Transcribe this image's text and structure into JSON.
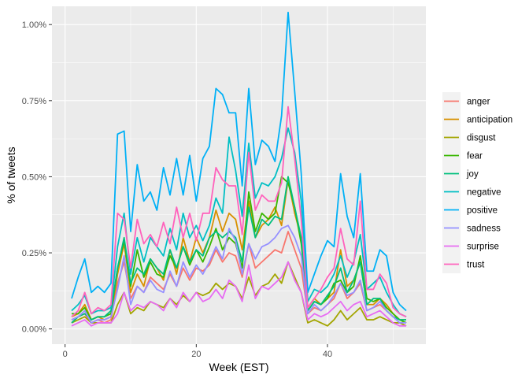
{
  "chart_data": {
    "type": "line",
    "xlabel": "Week (EST)",
    "ylabel": "% of tweets",
    "xlim": [
      -2,
      55
    ],
    "ylim": [
      -0.05,
      1.06
    ],
    "x_ticks": [
      0,
      20,
      40
    ],
    "x_tick_labels": [
      "0",
      "20",
      "40"
    ],
    "y_ticks": [
      0,
      0.25,
      0.5,
      0.75,
      1.0
    ],
    "y_tick_labels": [
      "0.00%",
      "0.25%",
      "0.50%",
      "0.75%",
      "1.00%"
    ],
    "grid": true,
    "legend_position": "right",
    "panel_background": "#ebebeb",
    "x": [
      1,
      2,
      3,
      4,
      5,
      6,
      7,
      8,
      9,
      10,
      11,
      12,
      13,
      14,
      15,
      16,
      17,
      18,
      19,
      20,
      21,
      22,
      23,
      24,
      25,
      26,
      27,
      28,
      29,
      30,
      31,
      32,
      33,
      34,
      35,
      36,
      37,
      38,
      39,
      40,
      41,
      42,
      43,
      44,
      45,
      46,
      47,
      48,
      49,
      50,
      51,
      52
    ],
    "series": [
      {
        "name": "anger",
        "color": "#F8766D",
        "values": [
          0.03,
          0.04,
          0.05,
          0.02,
          0.03,
          0.02,
          0.03,
          0.15,
          0.22,
          0.1,
          0.14,
          0.12,
          0.17,
          0.15,
          0.13,
          0.18,
          0.14,
          0.2,
          0.16,
          0.2,
          0.19,
          0.21,
          0.26,
          0.22,
          0.25,
          0.24,
          0.17,
          0.28,
          0.2,
          0.22,
          0.24,
          0.26,
          0.25,
          0.32,
          0.26,
          0.2,
          0.05,
          0.07,
          0.06,
          0.08,
          0.1,
          0.15,
          0.1,
          0.12,
          0.15,
          0.06,
          0.07,
          0.08,
          0.06,
          0.04,
          0.03,
          0.02
        ]
      },
      {
        "name": "anticipation",
        "color": "#D89000",
        "values": [
          0.04,
          0.05,
          0.08,
          0.03,
          0.04,
          0.03,
          0.04,
          0.18,
          0.28,
          0.12,
          0.18,
          0.14,
          0.23,
          0.2,
          0.16,
          0.26,
          0.18,
          0.3,
          0.22,
          0.3,
          0.25,
          0.3,
          0.39,
          0.32,
          0.38,
          0.36,
          0.26,
          0.42,
          0.3,
          0.34,
          0.36,
          0.4,
          0.34,
          0.49,
          0.38,
          0.3,
          0.07,
          0.1,
          0.08,
          0.1,
          0.12,
          0.26,
          0.14,
          0.16,
          0.22,
          0.08,
          0.08,
          0.1,
          0.08,
          0.05,
          0.03,
          0.03
        ]
      },
      {
        "name": "disgust",
        "color": "#A3A500",
        "values": [
          0.02,
          0.03,
          0.04,
          0.02,
          0.02,
          0.02,
          0.02,
          0.08,
          0.12,
          0.05,
          0.07,
          0.06,
          0.09,
          0.08,
          0.07,
          0.1,
          0.08,
          0.11,
          0.09,
          0.12,
          0.11,
          0.12,
          0.15,
          0.13,
          0.15,
          0.14,
          0.1,
          0.17,
          0.11,
          0.14,
          0.15,
          0.18,
          0.15,
          0.22,
          0.17,
          0.12,
          0.02,
          0.03,
          0.02,
          0.01,
          0.03,
          0.06,
          0.03,
          0.05,
          0.07,
          0.03,
          0.03,
          0.04,
          0.03,
          0.02,
          0.02,
          0.01
        ]
      },
      {
        "name": "fear",
        "color": "#39B600",
        "values": [
          0.05,
          0.05,
          0.07,
          0.03,
          0.04,
          0.04,
          0.05,
          0.2,
          0.29,
          0.14,
          0.26,
          0.17,
          0.22,
          0.18,
          0.17,
          0.24,
          0.2,
          0.27,
          0.21,
          0.26,
          0.22,
          0.27,
          0.33,
          0.26,
          0.3,
          0.28,
          0.2,
          0.45,
          0.32,
          0.38,
          0.36,
          0.38,
          0.5,
          0.48,
          0.4,
          0.28,
          0.06,
          0.09,
          0.08,
          0.1,
          0.15,
          0.16,
          0.12,
          0.14,
          0.24,
          0.1,
          0.09,
          0.1,
          0.07,
          0.05,
          0.03,
          0.02
        ]
      },
      {
        "name": "joy",
        "color": "#00BF7D",
        "values": [
          0.02,
          0.04,
          0.05,
          0.03,
          0.04,
          0.04,
          0.06,
          0.2,
          0.3,
          0.15,
          0.2,
          0.18,
          0.23,
          0.2,
          0.18,
          0.26,
          0.2,
          0.27,
          0.22,
          0.26,
          0.24,
          0.3,
          0.32,
          0.3,
          0.32,
          0.3,
          0.22,
          0.4,
          0.3,
          0.36,
          0.34,
          0.37,
          0.36,
          0.5,
          0.4,
          0.3,
          0.06,
          0.09,
          0.08,
          0.11,
          0.14,
          0.2,
          0.12,
          0.16,
          0.22,
          0.08,
          0.1,
          0.1,
          0.06,
          0.04,
          0.03,
          0.03
        ]
      },
      {
        "name": "negative",
        "color": "#00BFC4",
        "values": [
          0.06,
          0.08,
          0.11,
          0.05,
          0.06,
          0.06,
          0.07,
          0.27,
          0.38,
          0.18,
          0.3,
          0.22,
          0.3,
          0.27,
          0.24,
          0.33,
          0.26,
          0.38,
          0.3,
          0.34,
          0.29,
          0.34,
          0.43,
          0.38,
          0.63,
          0.52,
          0.37,
          0.61,
          0.43,
          0.48,
          0.47,
          0.5,
          0.56,
          0.66,
          0.58,
          0.42,
          0.09,
          0.13,
          0.12,
          0.14,
          0.18,
          0.24,
          0.17,
          0.22,
          0.31,
          0.13,
          0.15,
          0.17,
          0.12,
          0.08,
          0.05,
          0.04
        ]
      },
      {
        "name": "positive",
        "color": "#00B0F6",
        "values": [
          0.1,
          0.17,
          0.23,
          0.12,
          0.14,
          0.12,
          0.15,
          0.64,
          0.65,
          0.32,
          0.54,
          0.42,
          0.45,
          0.39,
          0.53,
          0.44,
          0.56,
          0.44,
          0.57,
          0.42,
          0.56,
          0.6,
          0.79,
          0.77,
          0.71,
          0.71,
          0.47,
          0.79,
          0.54,
          0.62,
          0.6,
          0.55,
          0.7,
          1.04,
          0.78,
          0.51,
          0.12,
          0.18,
          0.24,
          0.29,
          0.27,
          0.51,
          0.37,
          0.3,
          0.51,
          0.19,
          0.19,
          0.26,
          0.24,
          0.12,
          0.08,
          0.06
        ]
      },
      {
        "name": "sadness",
        "color": "#9590FF",
        "values": [
          0.03,
          0.04,
          0.06,
          0.02,
          0.03,
          0.03,
          0.04,
          0.13,
          0.24,
          0.08,
          0.14,
          0.12,
          0.16,
          0.13,
          0.12,
          0.19,
          0.14,
          0.22,
          0.17,
          0.21,
          0.18,
          0.22,
          0.27,
          0.23,
          0.33,
          0.29,
          0.18,
          0.28,
          0.23,
          0.27,
          0.28,
          0.3,
          0.33,
          0.34,
          0.3,
          0.24,
          0.05,
          0.08,
          0.06,
          0.08,
          0.11,
          0.15,
          0.11,
          0.12,
          0.16,
          0.06,
          0.07,
          0.09,
          0.06,
          0.04,
          0.02,
          0.02
        ]
      },
      {
        "name": "surprise",
        "color": "#E76BF3",
        "values": [
          0.01,
          0.02,
          0.03,
          0.01,
          0.02,
          0.02,
          0.02,
          0.05,
          0.12,
          0.06,
          0.08,
          0.07,
          0.09,
          0.08,
          0.06,
          0.1,
          0.07,
          0.12,
          0.09,
          0.12,
          0.09,
          0.1,
          0.13,
          0.1,
          0.16,
          0.14,
          0.09,
          0.21,
          0.1,
          0.14,
          0.13,
          0.15,
          0.17,
          0.22,
          0.16,
          0.12,
          0.03,
          0.05,
          0.04,
          0.05,
          0.07,
          0.09,
          0.06,
          0.08,
          0.09,
          0.04,
          0.05,
          0.06,
          0.04,
          0.02,
          0.01,
          0.01
        ]
      },
      {
        "name": "trust",
        "color": "#FF62BC",
        "values": [
          0.04,
          0.06,
          0.12,
          0.05,
          0.07,
          0.06,
          0.08,
          0.38,
          0.36,
          0.2,
          0.36,
          0.28,
          0.31,
          0.27,
          0.35,
          0.28,
          0.4,
          0.3,
          0.38,
          0.29,
          0.38,
          0.38,
          0.53,
          0.49,
          0.47,
          0.47,
          0.31,
          0.58,
          0.39,
          0.44,
          0.42,
          0.42,
          0.48,
          0.73,
          0.56,
          0.36,
          0.07,
          0.1,
          0.13,
          0.17,
          0.2,
          0.33,
          0.23,
          0.21,
          0.42,
          0.13,
          0.13,
          0.18,
          0.15,
          0.07,
          0.05,
          0.04
        ]
      }
    ]
  }
}
